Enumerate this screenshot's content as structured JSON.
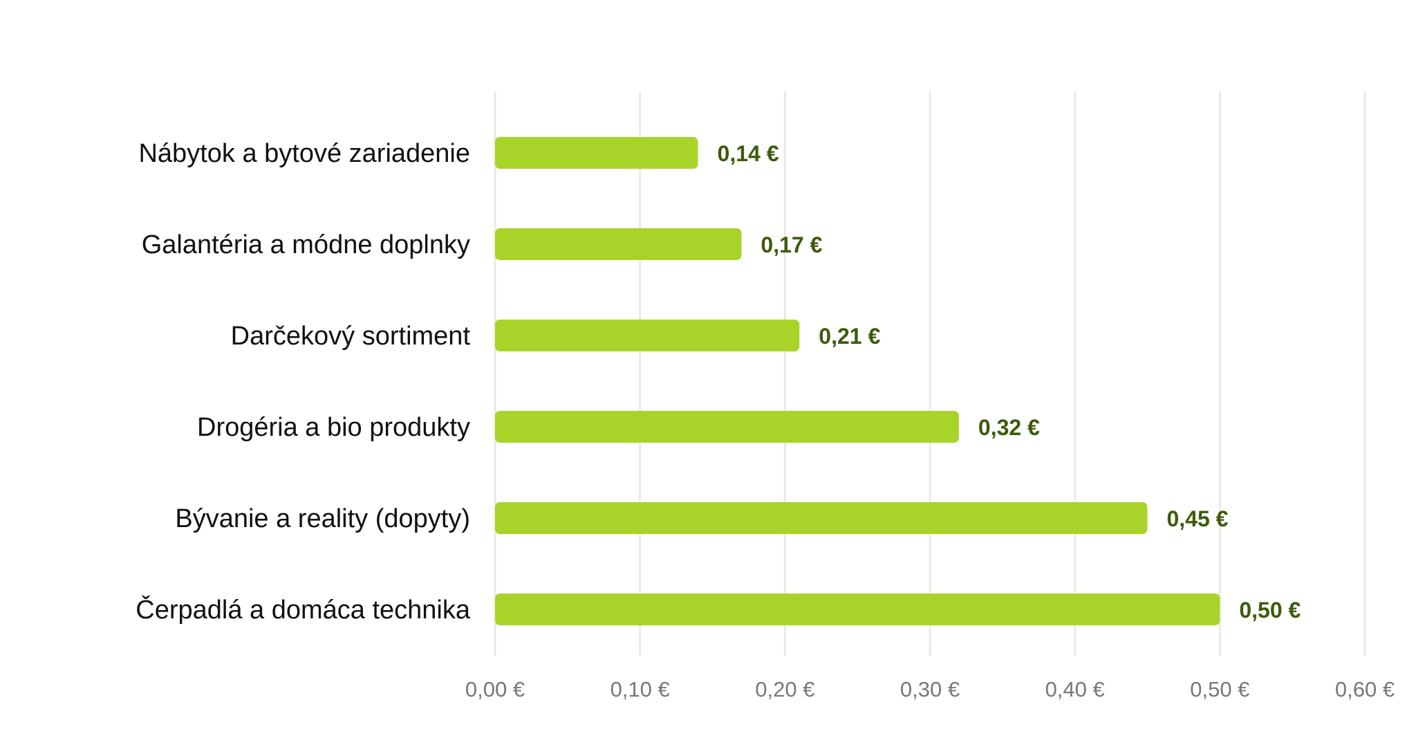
{
  "chart_data": {
    "type": "bar",
    "orientation": "horizontal",
    "categories": [
      "Nábytok a bytové zariadenie",
      "Galantéria a módne doplnky",
      "Darčekový sortiment",
      "Drogéria a bio produkty",
      "Bývanie a reality (dopyty)",
      "Čerpadlá a domáca technika"
    ],
    "values": [
      0.14,
      0.17,
      0.21,
      0.32,
      0.45,
      0.5
    ],
    "value_labels": [
      "0,14 €",
      "0,17 €",
      "0,21 €",
      "0,32 €",
      "0,45 €",
      "0,50 €"
    ],
    "xlim": [
      0,
      0.6
    ],
    "x_ticks": [
      0,
      0.1,
      0.2,
      0.3,
      0.4,
      0.5,
      0.6
    ],
    "x_tick_labels": [
      "0,00 €",
      "0,10 €",
      "0,20 €",
      "0,30 €",
      "0,40 €",
      "0,50 €",
      "0,60 €"
    ],
    "grid": true,
    "legend": "none",
    "colors": {
      "bar": "#a8d42a",
      "value_label": "#3d5a0c",
      "grid": "#e8ebe0",
      "tick_label": "#777777"
    }
  }
}
